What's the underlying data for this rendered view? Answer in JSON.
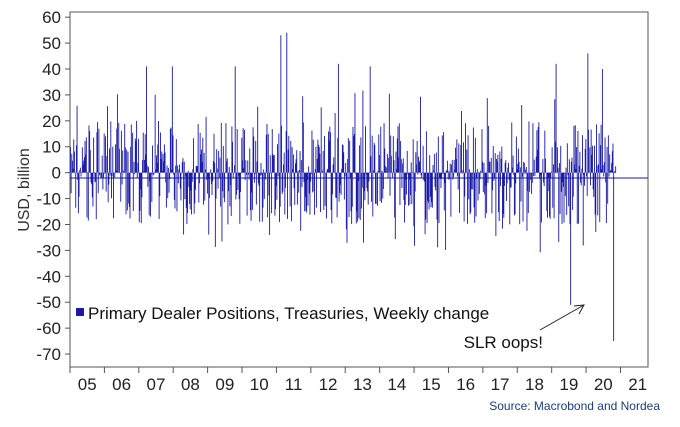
{
  "chart_data": {
    "type": "bar",
    "title": "",
    "ylabel": "USD, billion",
    "xlabel": "",
    "ylim": [
      -75,
      62
    ],
    "y_ticks": [
      60,
      50,
      40,
      30,
      20,
      10,
      0,
      -10,
      -20,
      -30,
      -40,
      -50,
      -60,
      -70
    ],
    "x_tick_labels": [
      "05",
      "06",
      "07",
      "08",
      "09",
      "10",
      "11",
      "12",
      "13",
      "14",
      "15",
      "16",
      "17",
      "18",
      "19",
      "20",
      "21"
    ],
    "x_range": [
      2005.0,
      2021.8
    ],
    "bar_color": "#1a1aa6",
    "grid": false,
    "legend": {
      "position": "bottom-left",
      "entries": [
        "Primary Dealer Positions, Treasuries, Weekly change"
      ]
    },
    "series": [
      {
        "name": "Primary Dealer Positions, Treasuries, Weekly change",
        "frequency": "weekly",
        "notable_points": [
          {
            "x": "2007-03",
            "y": 41
          },
          {
            "x": "2007-12",
            "y": 41
          },
          {
            "x": "2009-10",
            "y": 41
          },
          {
            "x": "2011-02",
            "y": 53
          },
          {
            "x": "2011-04",
            "y": 54
          },
          {
            "x": "2012-10",
            "y": 42
          },
          {
            "x": "2013-09",
            "y": 41
          },
          {
            "x": "2019-02",
            "y": 42
          },
          {
            "x": "2019-07",
            "y": -51
          },
          {
            "x": "2020-01",
            "y": 46
          },
          {
            "x": "2020-06",
            "y": 40
          },
          {
            "x": "2020-10",
            "y": -65
          }
        ],
        "envelope_approx": {
          "typical_max": 20,
          "typical_min": -20
        }
      }
    ],
    "annotations": [
      {
        "text": "SLR oops!",
        "points_to": {
          "x": "2020-10",
          "y": -50
        }
      }
    ],
    "source": "Source: Macrobond and Nordea"
  }
}
